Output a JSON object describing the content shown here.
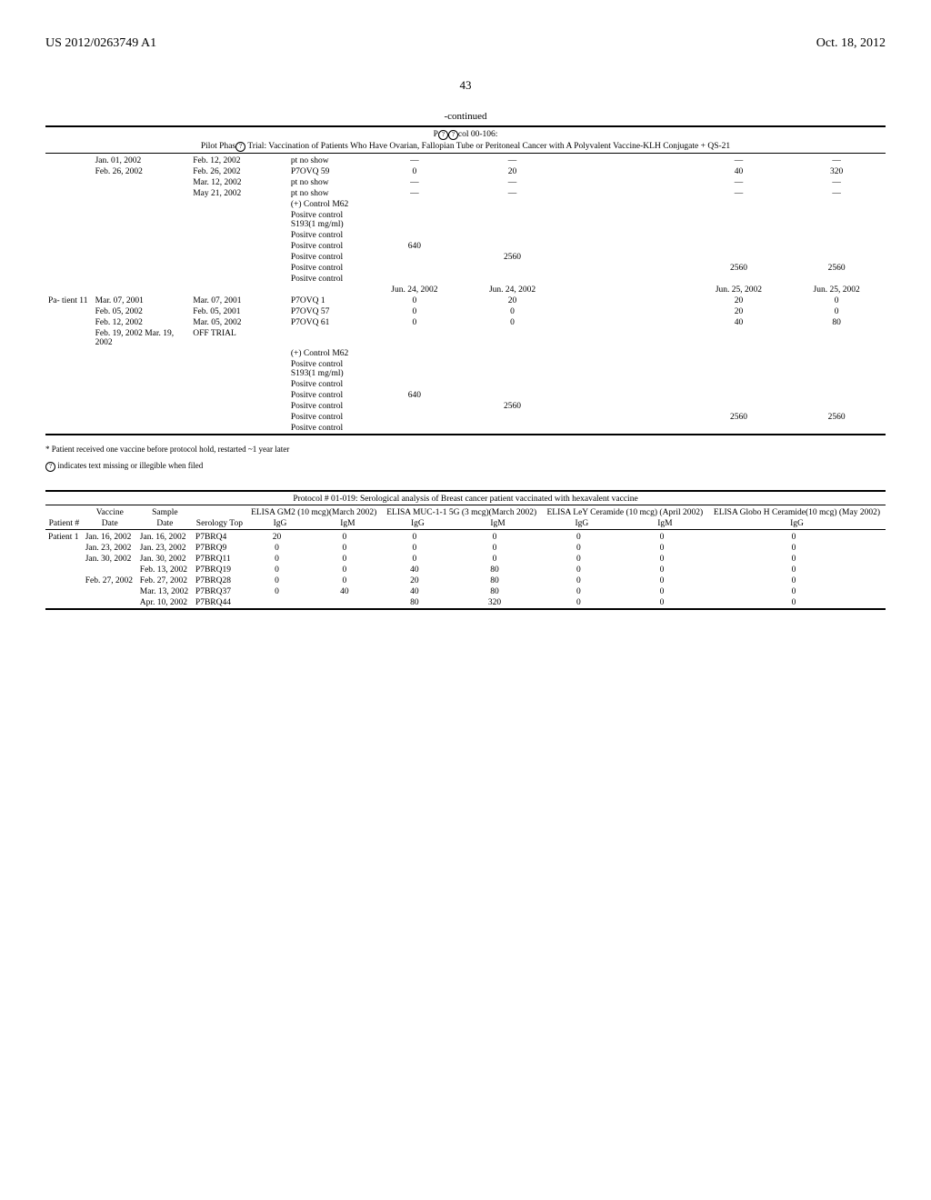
{
  "header": {
    "left": "US 2012/0263749 A1",
    "right": "Oct. 18, 2012",
    "page": "43"
  },
  "table1": {
    "continued": "-continued",
    "protocol_line": "col 00-106:",
    "title": "Pilot Phas",
    "title_tail": " Trial: Vaccination of Patients Who Have Ovarian, Fallopian Tube or Peritoneal Cancer with A Polyvalent Vaccine-KLH Conjugate + QS-21",
    "rows": [
      {
        "c1": "",
        "c2": "Jan. 01, 2002",
        "c3": "Feb. 12, 2002",
        "c4": "pt no show",
        "c5": "—",
        "c6": "—",
        "c7": "",
        "c8": "—",
        "c9": "—"
      },
      {
        "c1": "",
        "c2": "Feb. 26, 2002",
        "c3": "Feb. 26, 2002",
        "c4": "P7OVQ 59",
        "c5": "0",
        "c6": "20",
        "c7": "",
        "c8": "40",
        "c9": "320"
      },
      {
        "c1": "",
        "c2": "",
        "c3": "Mar. 12, 2002",
        "c4": "pt no show",
        "c5": "—",
        "c6": "—",
        "c7": "",
        "c8": "—",
        "c9": "—"
      },
      {
        "c1": "",
        "c2": "",
        "c3": "May 21, 2002",
        "c4": "pt no show",
        "c5": "—",
        "c6": "—",
        "c7": "",
        "c8": "—",
        "c9": "—"
      },
      {
        "c1": "",
        "c2": "",
        "c3": "",
        "c4": "(+) Control M62",
        "c5": "",
        "c6": "",
        "c7": "",
        "c8": "",
        "c9": ""
      },
      {
        "c1": "",
        "c2": "",
        "c3": "",
        "c4": "Positve control S193(1 mg/ml)",
        "c5": "",
        "c6": "",
        "c7": "",
        "c8": "",
        "c9": ""
      },
      {
        "c1": "",
        "c2": "",
        "c3": "",
        "c4": "Positve control",
        "c5": "",
        "c6": "",
        "c7": "",
        "c8": "",
        "c9": ""
      },
      {
        "c1": "",
        "c2": "",
        "c3": "",
        "c4": "Positve control",
        "c5": "640",
        "c6": "",
        "c7": "",
        "c8": "",
        "c9": ""
      },
      {
        "c1": "",
        "c2": "",
        "c3": "",
        "c4": "Positve control",
        "c5": "",
        "c6": "2560",
        "c7": "",
        "c8": "",
        "c9": ""
      },
      {
        "c1": "",
        "c2": "",
        "c3": "",
        "c4": "Positve control",
        "c5": "",
        "c6": "",
        "c7": "",
        "c8": "2560",
        "c9": "2560"
      },
      {
        "c1": "",
        "c2": "",
        "c3": "",
        "c4": "Positve control",
        "c5": "",
        "c6": "",
        "c7": "",
        "c8": "",
        "c9": ""
      },
      {
        "c1": "",
        "c2": "",
        "c3": "",
        "c4": "",
        "c5": "Jun. 24, 2002",
        "c6": "Jun. 24, 2002",
        "c7": "",
        "c8": "Jun. 25, 2002",
        "c9": "Jun. 25, 2002"
      },
      {
        "c1": "Pa-\ntient\n11",
        "c2": "Mar. 07, 2001",
        "c3": "Mar. 07, 2001",
        "c4": "P7OVQ 1",
        "c5": "0",
        "c6": "20",
        "c7": "",
        "c8": "20",
        "c9": "0"
      },
      {
        "c1": "",
        "c2": "Feb. 05, 2002",
        "c3": "Feb. 05, 2001",
        "c4": "P7OVQ 57",
        "c5": "0",
        "c6": "0",
        "c7": "",
        "c8": "20",
        "c9": "0"
      },
      {
        "c1": "",
        "c2": "Feb. 12, 2002",
        "c3": "Mar. 05, 2002",
        "c4": "P7OVQ 61",
        "c5": "0",
        "c6": "0",
        "c7": "",
        "c8": "40",
        "c9": "80"
      },
      {
        "c1": "",
        "c2": "Feb. 19, 2002 Mar. 19, 2002",
        "c3": "OFF TRIAL",
        "c4": "",
        "c5": "",
        "c6": "",
        "c7": "",
        "c8": "",
        "c9": ""
      },
      {
        "c1": "",
        "c2": "",
        "c3": "",
        "c4": "(+) Control M62",
        "c5": "",
        "c6": "",
        "c7": "",
        "c8": "",
        "c9": ""
      },
      {
        "c1": "",
        "c2": "",
        "c3": "",
        "c4": "Positve control S193(1 mg/ml)",
        "c5": "",
        "c6": "",
        "c7": "",
        "c8": "",
        "c9": ""
      },
      {
        "c1": "",
        "c2": "",
        "c3": "",
        "c4": "Positve control",
        "c5": "",
        "c6": "",
        "c7": "",
        "c8": "",
        "c9": ""
      },
      {
        "c1": "",
        "c2": "",
        "c3": "",
        "c4": "Positve control",
        "c5": "640",
        "c6": "",
        "c7": "",
        "c8": "",
        "c9": ""
      },
      {
        "c1": "",
        "c2": "",
        "c3": "",
        "c4": "Positve control",
        "c5": "",
        "c6": "2560",
        "c7": "",
        "c8": "",
        "c9": ""
      },
      {
        "c1": "",
        "c2": "",
        "c3": "",
        "c4": "Positve control",
        "c5": "",
        "c6": "",
        "c7": "",
        "c8": "2560",
        "c9": "2560"
      },
      {
        "c1": "",
        "c2": "",
        "c3": "",
        "c4": "Positve control",
        "c5": "",
        "c6": "",
        "c7": "",
        "c8": "",
        "c9": ""
      }
    ],
    "footnote1": "* Patient received one vaccine before protocol hold, restarted ~1 year later",
    "footnote2": " indicates text missing or illegible when filed"
  },
  "table2": {
    "title": "Protocol # 01-019: Serological analysis of Breast cancer patient vaccinated with hexavalent vaccine",
    "head_groups": [
      {
        "label": "ELISA GM2 (10 mcg)(March 2002)"
      },
      {
        "label": "ELISA MUC-1-1 5G (3 mcg)(March 2002)"
      },
      {
        "label": "ELISA LeY Ceramide (10 mcg) (April 2002)"
      },
      {
        "label": "ELISA Globo H Ceramide(10 mcg) (May 2002)"
      }
    ],
    "cols": [
      "Patient #",
      "Vaccine Date",
      "Sample Date",
      "Serology Top",
      "IgG",
      "IgM",
      "IgG",
      "IgM",
      "IgG",
      "IgM",
      "IgG"
    ],
    "rows": [
      {
        "p": "Patient 1",
        "vd": "Jan. 16, 2002",
        "sd": "Jan. 16, 2002",
        "st": "P7BRQ4",
        "v": [
          "20",
          "0",
          "0",
          "0",
          "0",
          "0",
          "0"
        ]
      },
      {
        "p": "",
        "vd": "Jan. 23, 2002",
        "sd": "Jan. 23, 2002",
        "st": "P7BRQ9",
        "v": [
          "0",
          "0",
          "0",
          "0",
          "0",
          "0",
          "0"
        ]
      },
      {
        "p": "",
        "vd": "Jan. 30, 2002",
        "sd": "Jan. 30, 2002",
        "st": "P7BRQ11",
        "v": [
          "0",
          "0",
          "0",
          "0",
          "0",
          "0",
          "0"
        ]
      },
      {
        "p": "",
        "vd": "",
        "sd": "Feb. 13, 2002",
        "st": "P7BRQ19",
        "v": [
          "0",
          "0",
          "40",
          "80",
          "0",
          "0",
          "0"
        ]
      },
      {
        "p": "",
        "vd": "Feb. 27, 2002",
        "sd": "Feb. 27, 2002",
        "st": "P7BRQ28",
        "v": [
          "0",
          "0",
          "20",
          "80",
          "0",
          "0",
          "0"
        ]
      },
      {
        "p": "",
        "vd": "",
        "sd": "Mar. 13, 2002",
        "st": "P7BRQ37",
        "v": [
          "0",
          "40",
          "40",
          "80",
          "0",
          "0",
          "0"
        ]
      },
      {
        "p": "",
        "vd": "",
        "sd": "Apr. 10, 2002",
        "st": "P7BRQ44",
        "v": [
          "",
          "",
          "80",
          "320",
          "0",
          "0",
          "0"
        ]
      }
    ]
  }
}
